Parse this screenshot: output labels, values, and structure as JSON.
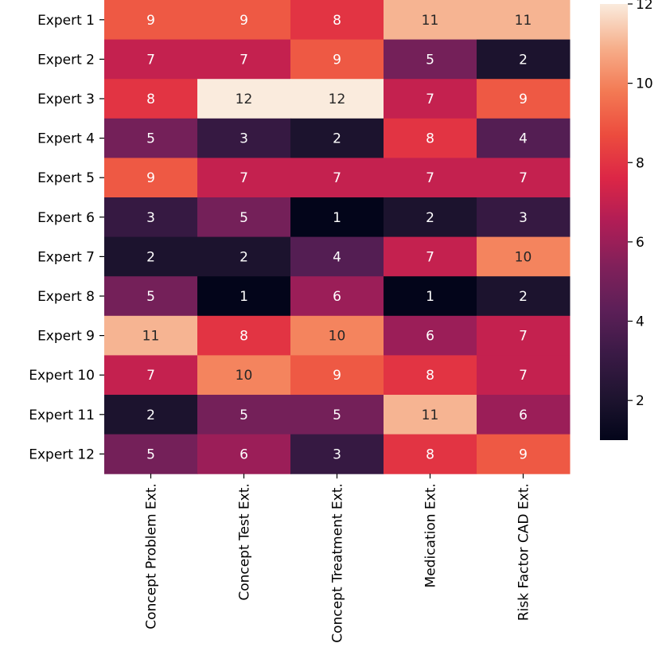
{
  "chart_data": {
    "type": "heatmap",
    "rows": [
      "Expert 1",
      "Expert 2",
      "Expert 3",
      "Expert 4",
      "Expert 5",
      "Expert 6",
      "Expert 7",
      "Expert 8",
      "Expert 9",
      "Expert 10",
      "Expert 11",
      "Expert 12"
    ],
    "columns": [
      "Concept Problem Ext.",
      "Concept Test Ext.",
      "Concept Treatment Ext.",
      "Medication Ext.",
      "Risk Factor CAD Ext."
    ],
    "values": [
      [
        9,
        9,
        8,
        11,
        11
      ],
      [
        7,
        7,
        9,
        5,
        2
      ],
      [
        8,
        12,
        12,
        7,
        9
      ],
      [
        5,
        3,
        2,
        8,
        4
      ],
      [
        9,
        7,
        7,
        7,
        7
      ],
      [
        3,
        5,
        1,
        2,
        3
      ],
      [
        2,
        2,
        4,
        7,
        10
      ],
      [
        5,
        1,
        6,
        1,
        2
      ],
      [
        11,
        8,
        10,
        6,
        7
      ],
      [
        7,
        10,
        9,
        8,
        7
      ],
      [
        2,
        5,
        5,
        11,
        6
      ],
      [
        5,
        6,
        3,
        8,
        9
      ]
    ],
    "vmin": 1,
    "vmax": 12,
    "colormap": "rocket",
    "annotations": true,
    "colorbar": {
      "ticks": [
        2,
        4,
        6,
        8,
        10,
        12
      ],
      "tick_labels": [
        "2",
        "4",
        "6",
        "8",
        "10",
        "12"
      ]
    }
  }
}
